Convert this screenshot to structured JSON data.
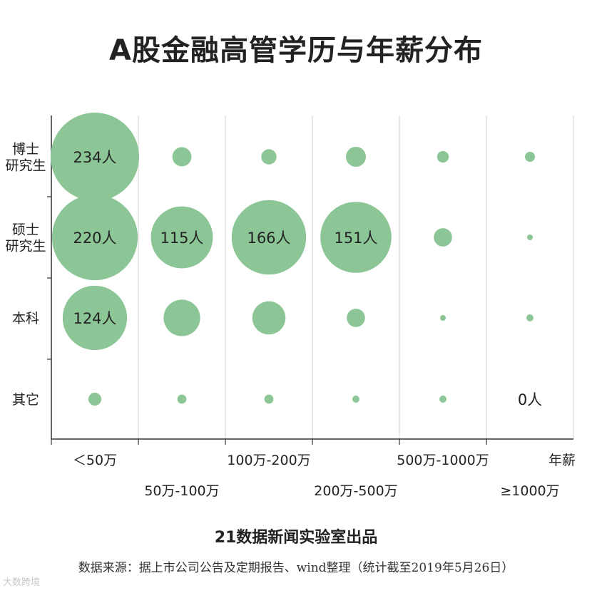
{
  "title": "A股金融高管学历与年薪分布",
  "credit": "21数据新闻实验室出品",
  "source": "数据来源：据上市公司公告及定期报告、wind整理（统计截至2019年5月26日）",
  "watermark": "大数跨境",
  "colors": {
    "bubble": "#8cc696",
    "grid": "#d0d0d0",
    "axis": "#333333"
  },
  "chart_data": {
    "type": "bubble",
    "xlabel": "年薪",
    "categories_x": [
      "＜50万",
      "50万-100万",
      "100万-200万",
      "200万-500万",
      "500万-1000万",
      "≥1000万"
    ],
    "categories_y": [
      "博士\n研究生",
      "硕士\n研究生",
      "本科",
      "其它"
    ],
    "grid": true,
    "cells": [
      {
        "y": "博士\n研究生",
        "x": "＜50万",
        "value": 234,
        "label": "234人"
      },
      {
        "y": "博士\n研究生",
        "x": "50万-100万",
        "value": 11
      },
      {
        "y": "博士\n研究生",
        "x": "100万-200万",
        "value": 7
      },
      {
        "y": "博士\n研究生",
        "x": "200万-500万",
        "value": 12
      },
      {
        "y": "博士\n研究生",
        "x": "500万-1000万",
        "value": 4
      },
      {
        "y": "博士\n研究生",
        "x": "≥1000万",
        "value": 3
      },
      {
        "y": "硕士\n研究生",
        "x": "＜50万",
        "value": 220,
        "label": "220人"
      },
      {
        "y": "硕士\n研究生",
        "x": "50万-100万",
        "value": 115,
        "label": "115人"
      },
      {
        "y": "硕士\n研究生",
        "x": "100万-200万",
        "value": 166,
        "label": "166人"
      },
      {
        "y": "硕士\n研究生",
        "x": "200万-500万",
        "value": 151,
        "label": "151人"
      },
      {
        "y": "硕士\n研究生",
        "x": "500万-1000万",
        "value": 10
      },
      {
        "y": "硕士\n研究生",
        "x": "≥1000万",
        "value": 1
      },
      {
        "y": "本科",
        "x": "＜50万",
        "value": 124,
        "label": "124人"
      },
      {
        "y": "本科",
        "x": "50万-100万",
        "value": 40
      },
      {
        "y": "本科",
        "x": "100万-200万",
        "value": 33
      },
      {
        "y": "本科",
        "x": "200万-500万",
        "value": 10
      },
      {
        "y": "本科",
        "x": "500万-1000万",
        "value": 1
      },
      {
        "y": "本科",
        "x": "≥1000万",
        "value": 1.5
      },
      {
        "y": "其它",
        "x": "＜50万",
        "value": 5
      },
      {
        "y": "其它",
        "x": "50万-100万",
        "value": 2.5
      },
      {
        "y": "其它",
        "x": "100万-200万",
        "value": 2.5
      },
      {
        "y": "其它",
        "x": "200万-500万",
        "value": 1.5
      },
      {
        "y": "其它",
        "x": "500万-1000万",
        "value": 1.5
      },
      {
        "y": "其它",
        "x": "≥1000万",
        "value": 0,
        "label": "0人"
      }
    ]
  }
}
